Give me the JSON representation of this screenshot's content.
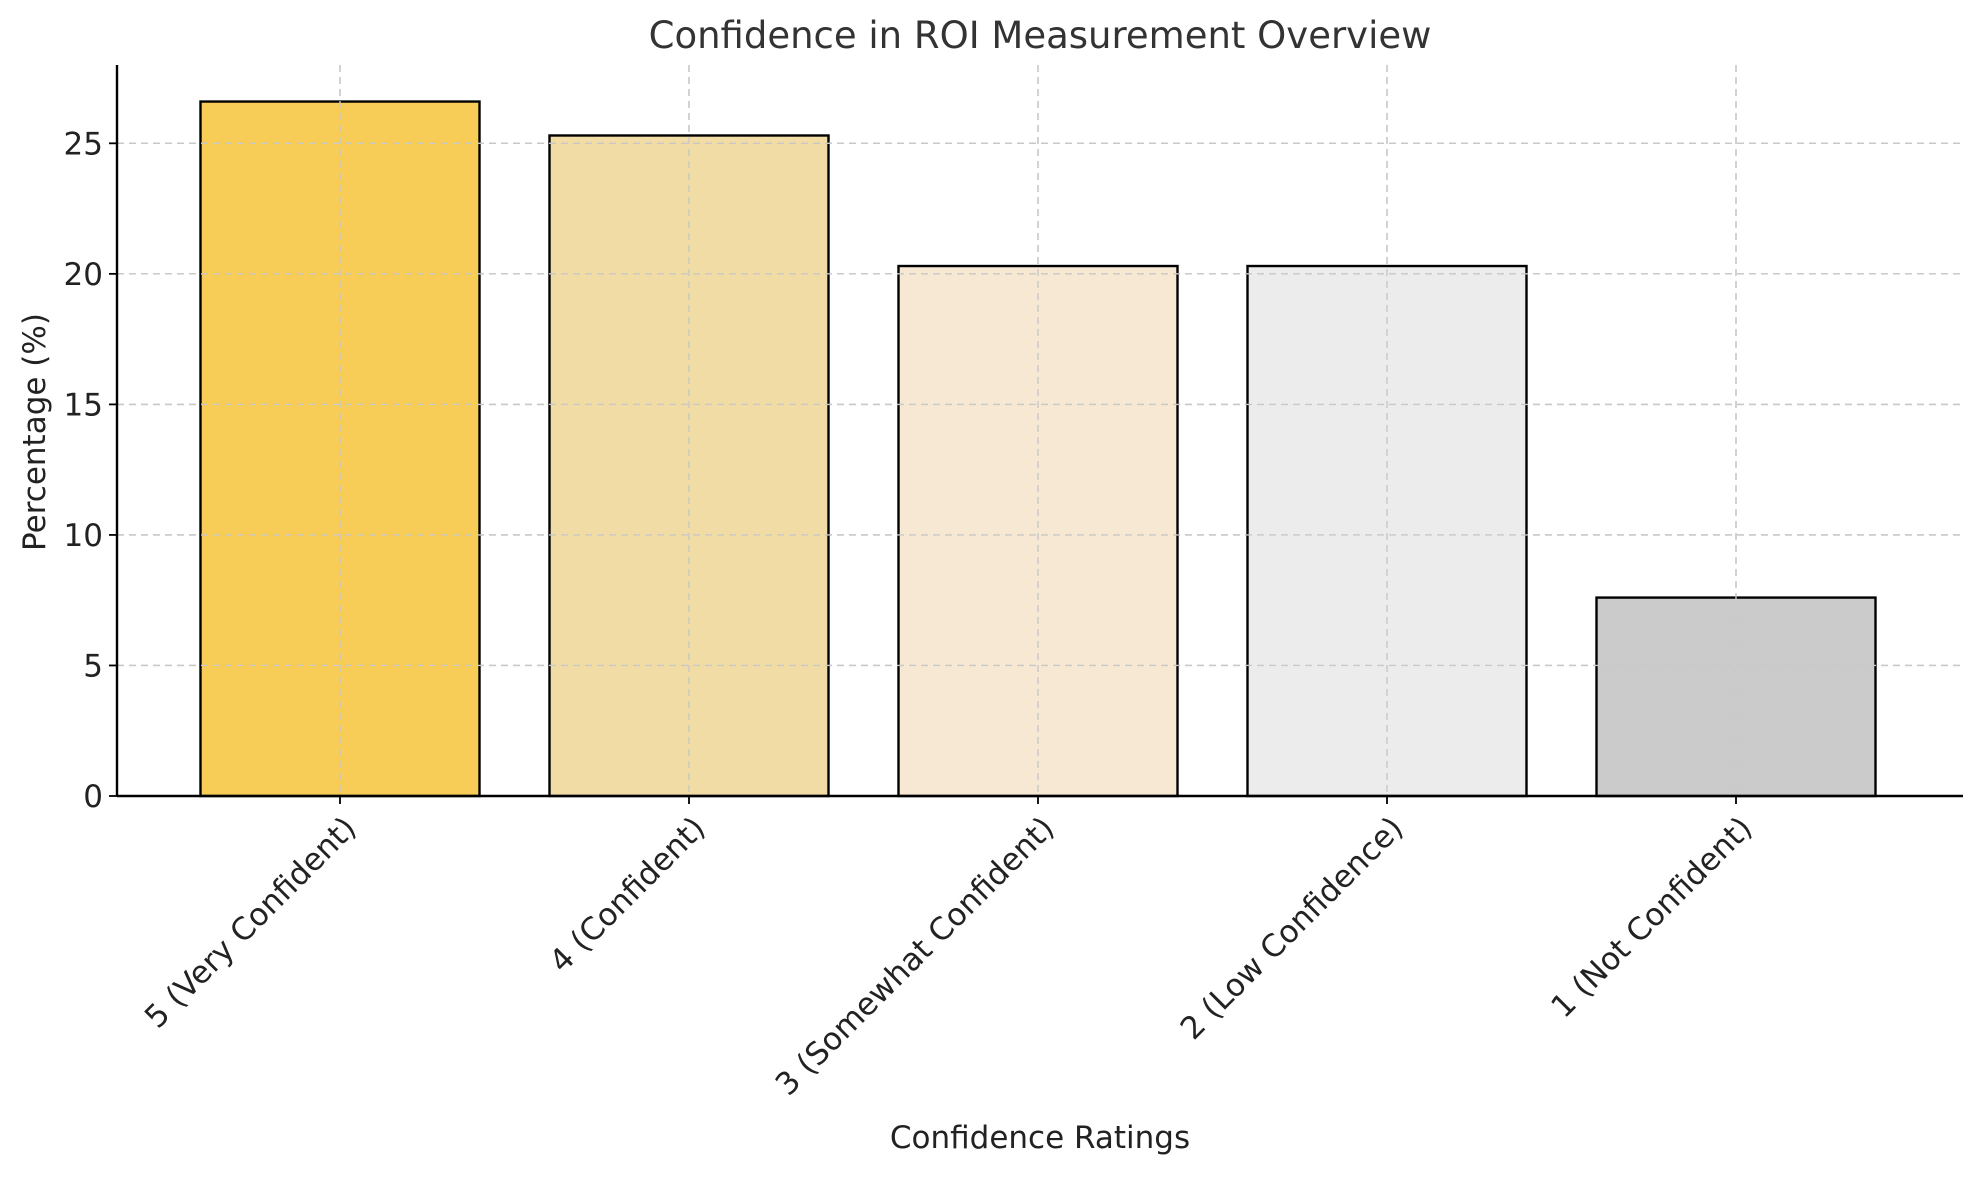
{
  "chart_data": {
    "type": "bar",
    "title": "Confidence in ROI Measurement Overview",
    "xlabel": "Confidence Ratings",
    "ylabel": "Percentage (%)",
    "categories": [
      "5 (Very Confident)",
      "4 (Confident)",
      "3 (Somewhat Confident)",
      "2 (Low Confidence)",
      "1 (Not Confident)"
    ],
    "values": [
      26.6,
      25.3,
      20.3,
      20.3,
      7.6
    ],
    "colors": [
      "#f8cd57",
      "#f1dca6",
      "#f6e8d3",
      "#ececec",
      "#cbcbcb"
    ],
    "ylim": [
      0,
      28
    ],
    "yticks": [
      0,
      5,
      10,
      15,
      20,
      25
    ],
    "grid": true,
    "legend": "none",
    "bar_edge_color": "#000000",
    "grid_color": "#c8c8c8"
  }
}
